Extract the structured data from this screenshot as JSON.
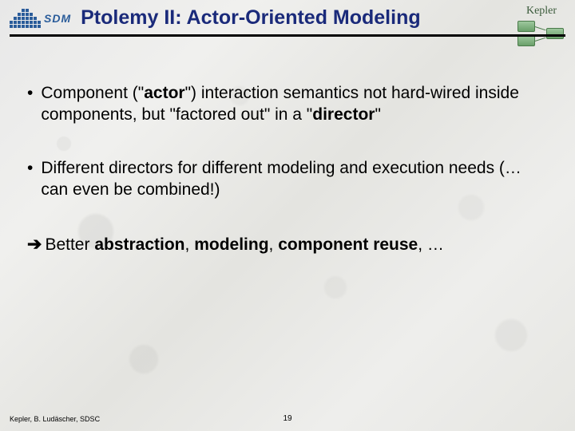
{
  "header": {
    "sdm_label": "SDM",
    "title": "Ptolemy II: Actor-Oriented Modeling",
    "kepler_label": "Kepler"
  },
  "bullets": [
    {
      "marker": "•",
      "segments": [
        {
          "t": "Component (\"",
          "b": false
        },
        {
          "t": "actor",
          "b": true
        },
        {
          "t": "\") interaction semantics not hard-wired inside components, but \"factored out\" in a \"",
          "b": false
        },
        {
          "t": "director",
          "b": true
        },
        {
          "t": "\"",
          "b": false
        }
      ]
    },
    {
      "marker": "•",
      "segments": [
        {
          "t": "Different directors for different modeling and execution needs (… can even be combined!)",
          "b": false
        }
      ]
    }
  ],
  "conclusion": {
    "arrow": "➔",
    "segments": [
      {
        "t": "Better ",
        "b": false
      },
      {
        "t": "abstraction",
        "b": true
      },
      {
        "t": ", ",
        "b": false
      },
      {
        "t": "modeling",
        "b": true
      },
      {
        "t": ", ",
        "b": false
      },
      {
        "t": "component reuse",
        "b": true
      },
      {
        "t": ", …",
        "b": false
      }
    ]
  },
  "footer": {
    "credit": "Kepler, B. Ludäscher, SDSC",
    "page": "19"
  },
  "colors": {
    "title": "#1a2a7a",
    "sdm": "#2a5c9a",
    "kepler": "#6aa06a",
    "text": "#000000"
  }
}
